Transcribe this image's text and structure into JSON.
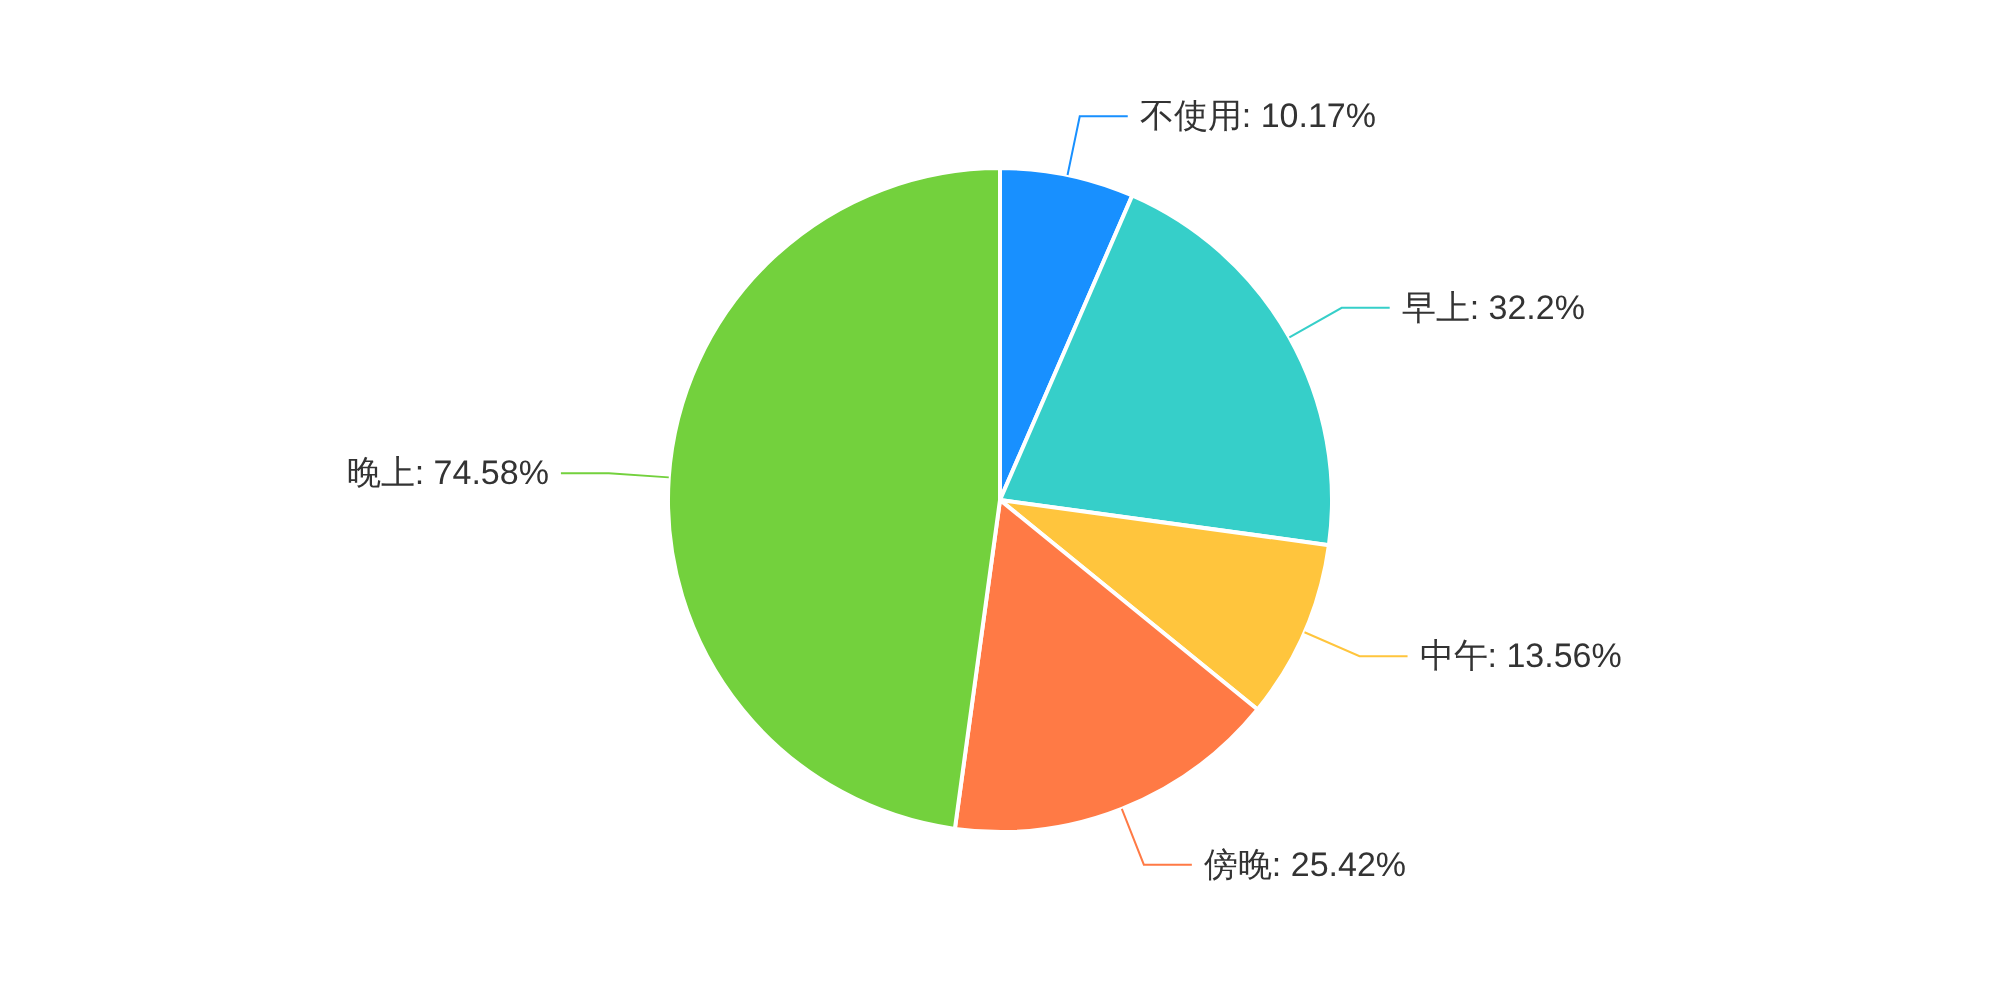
{
  "chart_data": {
    "type": "pie",
    "categories": [
      "不使用",
      "早上",
      "中午",
      "傍晚",
      "晚上"
    ],
    "values": [
      10.17,
      32.2,
      13.56,
      25.42,
      74.58
    ],
    "value_labels": [
      "10.17%",
      "32.2%",
      "13.56%",
      "25.42%",
      "74.58%"
    ],
    "colors": [
      "#1890ff",
      "#36cfc9",
      "#ffc53d",
      "#ff7a45",
      "#73d13d"
    ]
  }
}
